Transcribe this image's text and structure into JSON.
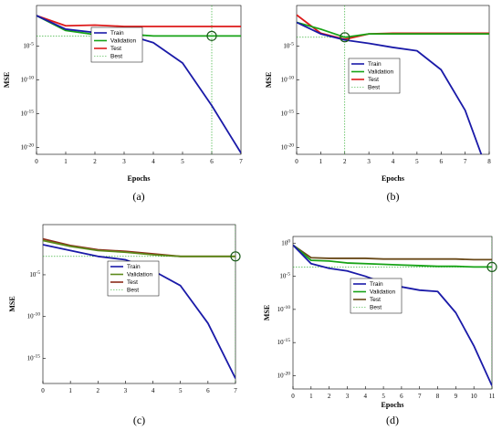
{
  "chart_data": [
    {
      "type": "line",
      "caption": "(a)",
      "xlabel": "Epochs",
      "ylabel": "MSE",
      "log_y": true,
      "xlim": [
        0,
        7
      ],
      "ylim": [
        -21,
        1
      ],
      "x_ticks": [
        0,
        1,
        2,
        3,
        4,
        5,
        6,
        7
      ],
      "x_tick_labels": [
        "0",
        "1",
        "2",
        "3",
        "4",
        "5",
        "6",
        "7"
      ],
      "y_ticks": [
        -5,
        -10,
        -15,
        -20
      ],
      "y_tick_base": "10",
      "y_tick_exponents": [
        "-5",
        "-10",
        "-15",
        "-20"
      ],
      "x": [
        0,
        1,
        2,
        3,
        4,
        5,
        6,
        7
      ],
      "series": [
        {
          "name": "Train",
          "color": "#1a1aa8",
          "values": [
            -0.5,
            -2.5,
            -3,
            -3.2,
            -4.5,
            -7.5,
            -13.8,
            -20.8
          ]
        },
        {
          "name": "Validation",
          "color": "#17a317",
          "values": [
            -0.5,
            -2.7,
            -3.3,
            -3.2,
            -3.5,
            -3.5,
            -3.5,
            -3.5
          ]
        },
        {
          "name": "Test",
          "color": "#dd1a1a",
          "values": [
            -0.5,
            -2,
            -1.9,
            -2.1,
            -2.1,
            -2.1,
            -2.1,
            -2.1
          ]
        }
      ],
      "legend": [
        "Train",
        "Validation",
        "Test",
        "Best"
      ],
      "legend_position": "top-center",
      "best": {
        "x": 6,
        "y": -3.5
      }
    },
    {
      "type": "line",
      "caption": "(b)",
      "xlabel": "Epochs",
      "ylabel": "MSE",
      "log_y": true,
      "xlim": [
        0,
        8
      ],
      "ylim": [
        -21,
        1
      ],
      "x_ticks": [
        0,
        1,
        2,
        3,
        4,
        5,
        6,
        7,
        8
      ],
      "x_tick_labels": [
        "0",
        "1",
        "2",
        "3",
        "4",
        "5",
        "6",
        "7",
        "8"
      ],
      "y_ticks": [
        -5,
        -10,
        -15,
        -20
      ],
      "y_tick_base": "10",
      "y_tick_exponents": [
        "-5",
        "-10",
        "-15",
        "-20"
      ],
      "x": [
        0,
        1,
        2,
        3,
        4,
        5,
        6,
        7,
        8
      ],
      "series": [
        {
          "name": "Train",
          "color": "#1a1aa8",
          "values": [
            -1.5,
            -3.2,
            -4.1,
            -4.6,
            -5.2,
            -5.7,
            -8.5,
            -14.5,
            -24.2
          ]
        },
        {
          "name": "Validation",
          "color": "#17a317",
          "values": [
            -1.5,
            -2.5,
            -3.7,
            -3.2,
            -3.2,
            -3.2,
            -3.2,
            -3.2,
            -3.2
          ]
        },
        {
          "name": "Test",
          "color": "#dd1a1a",
          "values": [
            -0.4,
            -3.1,
            -4,
            -3.2,
            -3.1,
            -3.1,
            -3.1,
            -3.1,
            -3.1
          ]
        }
      ],
      "legend": [
        "Train",
        "Validation",
        "Test",
        "Best"
      ],
      "legend_position": "top-center",
      "best": {
        "x": 2,
        "y": -3.7
      }
    },
    {
      "type": "line",
      "caption": "(c)",
      "xlabel": "",
      "ylabel": "MSE",
      "log_y": true,
      "xlim": [
        0,
        7
      ],
      "ylim": [
        -18,
        1
      ],
      "x_ticks": [
        0,
        1,
        2,
        3,
        4,
        5,
        6,
        7
      ],
      "x_tick_labels": [
        "0",
        "1",
        "2",
        "3",
        "4",
        "5",
        "6",
        "7"
      ],
      "y_ticks": [
        -5,
        -10,
        -15
      ],
      "y_tick_base": "10",
      "y_tick_exponents": [
        "-5",
        "-10",
        "-15"
      ],
      "x": [
        0,
        1,
        2,
        3,
        4,
        5,
        6,
        7
      ],
      "series": [
        {
          "name": "Train",
          "color": "#1a1aa8",
          "values": [
            -1.4,
            -2.1,
            -2.8,
            -3.2,
            -4.5,
            -6.3,
            -10.8,
            -17.4
          ]
        },
        {
          "name": "Validation",
          "color": "#5c8a1a",
          "values": [
            -0.9,
            -1.6,
            -2.1,
            -2.3,
            -2.6,
            -2.8,
            -2.8,
            -2.8
          ]
        },
        {
          "name": "Test",
          "color": "#8b2a1a",
          "values": [
            -0.7,
            -1.5,
            -2,
            -2.2,
            -2.5,
            -2.8,
            -2.8,
            -2.8
          ]
        }
      ],
      "legend": [
        "Train",
        "Validation",
        "Test",
        "Best"
      ],
      "legend_position": "center",
      "best": {
        "x": 7,
        "y": -2.8
      }
    },
    {
      "type": "line",
      "caption": "(d)",
      "xlabel": "Epochs",
      "ylabel": "MSE",
      "log_y": true,
      "xlim": [
        0,
        11
      ],
      "ylim": [
        -22,
        1
      ],
      "x_ticks": [
        0,
        1,
        2,
        3,
        4,
        5,
        6,
        7,
        8,
        9,
        10,
        11
      ],
      "x_tick_labels": [
        "0",
        "1",
        "2",
        "3",
        "4",
        "5",
        "6",
        "7",
        "8",
        "9",
        "10",
        "11"
      ],
      "y_ticks": [
        0,
        -5,
        -10,
        -15,
        -20
      ],
      "y_tick_base": "10",
      "y_tick_exponents": [
        "0",
        "-5",
        "-10",
        "-15",
        "-20"
      ],
      "x": [
        0,
        1,
        2,
        3,
        4,
        5,
        6,
        7,
        8,
        9,
        10,
        11
      ],
      "series": [
        {
          "name": "Train",
          "color": "#1a1aa8",
          "values": [
            -0.3,
            -3.1,
            -3.8,
            -4.2,
            -5,
            -6,
            -6.6,
            -7.1,
            -7.3,
            -10.5,
            -15.5,
            -21.5
          ]
        },
        {
          "name": "Validation",
          "color": "#17a317",
          "values": [
            -0.3,
            -2.6,
            -2.7,
            -3,
            -3.1,
            -3.2,
            -3.3,
            -3.4,
            -3.5,
            -3.5,
            -3.6,
            -3.6
          ]
        },
        {
          "name": "Test",
          "color": "#6a4a1a",
          "values": [
            -0.3,
            -2.2,
            -2.3,
            -2.3,
            -2.3,
            -2.4,
            -2.4,
            -2.4,
            -2.4,
            -2.4,
            -2.5,
            -2.5
          ]
        }
      ],
      "legend": [
        "Train",
        "Validation",
        "Test",
        "Best"
      ],
      "legend_position": "center",
      "best": {
        "x": 11,
        "y": -3.6
      }
    }
  ]
}
